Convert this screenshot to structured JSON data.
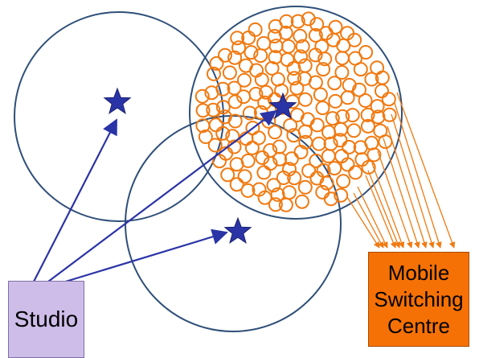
{
  "studio": {
    "label": "Studio"
  },
  "msc": {
    "label_lines": [
      "Mobile",
      "Switching",
      "Centre"
    ]
  },
  "colors": {
    "cell_circle": "#2f4f79",
    "star": "#2b34a6",
    "arrow_blue": "#2b34a6",
    "subscriber_ring": "#f07a12",
    "studio_fill": "#cdbde8",
    "msc_fill": "#f57105"
  },
  "icons": {
    "transmitter": "star-icon",
    "subscriber": "ring-icon"
  }
}
